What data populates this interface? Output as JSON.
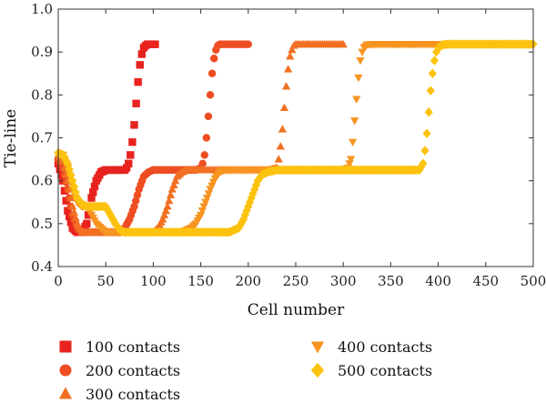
{
  "chart_data": {
    "type": "scatter",
    "title": "",
    "xlabel": "Cell number",
    "ylabel": "Tie-line",
    "xlim": [
      0,
      500
    ],
    "ylim": [
      0.4,
      1.0
    ],
    "xticks": [
      "0",
      "50",
      "100",
      "150",
      "200",
      "250",
      "300",
      "350",
      "400",
      "450",
      "500"
    ],
    "yticks": [
      "0.4",
      "0.5",
      "0.6",
      "0.7",
      "0.8",
      "0.9",
      "1.0"
    ],
    "grid": false,
    "legend_position": "bottom",
    "series": [
      {
        "name": "100 contacts",
        "marker": "square",
        "color": "#e8231e",
        "x": [
          0,
          5,
          10,
          15,
          20,
          25,
          30,
          35,
          40,
          45,
          50,
          55,
          60,
          65,
          70,
          72,
          74,
          76,
          78,
          80,
          82,
          84,
          86,
          88,
          90,
          92,
          94,
          96,
          98,
          100,
          102
        ],
        "y": [
          0.64,
          0.6,
          0.53,
          0.49,
          0.48,
          0.48,
          0.5,
          0.56,
          0.6,
          0.62,
          0.625,
          0.625,
          0.625,
          0.625,
          0.625,
          0.63,
          0.64,
          0.66,
          0.69,
          0.73,
          0.78,
          0.83,
          0.87,
          0.895,
          0.91,
          0.915,
          0.918,
          0.918,
          0.918,
          0.918,
          0.918
        ]
      },
      {
        "name": "200 contacts",
        "marker": "circle",
        "color": "#ee4d22",
        "x": [
          0,
          5,
          10,
          15,
          20,
          25,
          30,
          35,
          40,
          45,
          50,
          55,
          60,
          65,
          70,
          75,
          80,
          85,
          90,
          95,
          100,
          105,
          110,
          120,
          130,
          140,
          145,
          150,
          152,
          154,
          156,
          158,
          160,
          162,
          164,
          166,
          168,
          170,
          175,
          180,
          185,
          190,
          195,
          200
        ],
        "y": [
          0.65,
          0.63,
          0.58,
          0.52,
          0.49,
          0.48,
          0.48,
          0.48,
          0.48,
          0.48,
          0.48,
          0.48,
          0.48,
          0.48,
          0.49,
          0.51,
          0.54,
          0.58,
          0.61,
          0.62,
          0.625,
          0.625,
          0.625,
          0.625,
          0.625,
          0.625,
          0.625,
          0.63,
          0.64,
          0.66,
          0.7,
          0.75,
          0.8,
          0.85,
          0.885,
          0.905,
          0.915,
          0.918,
          0.918,
          0.918,
          0.918,
          0.918,
          0.918,
          0.918
        ]
      },
      {
        "name": "300 contacts",
        "marker": "triangle-up",
        "color": "#f27022",
        "x": [
          0,
          5,
          10,
          15,
          20,
          25,
          30,
          40,
          50,
          60,
          70,
          80,
          90,
          100,
          105,
          110,
          115,
          120,
          125,
          130,
          135,
          140,
          150,
          160,
          180,
          200,
          220,
          230,
          232,
          234,
          236,
          238,
          240,
          242,
          244,
          246,
          248,
          250,
          260,
          270,
          280,
          290,
          300
        ],
        "y": [
          0.66,
          0.645,
          0.6,
          0.54,
          0.5,
          0.48,
          0.48,
          0.48,
          0.48,
          0.48,
          0.48,
          0.48,
          0.48,
          0.48,
          0.49,
          0.51,
          0.54,
          0.58,
          0.61,
          0.62,
          0.625,
          0.625,
          0.625,
          0.625,
          0.625,
          0.625,
          0.625,
          0.63,
          0.65,
          0.68,
          0.72,
          0.77,
          0.82,
          0.86,
          0.89,
          0.905,
          0.915,
          0.918,
          0.918,
          0.918,
          0.918,
          0.918,
          0.918
        ]
      },
      {
        "name": "400 contacts",
        "marker": "triangle-down",
        "color": "#f79420",
        "x": [
          0,
          5,
          10,
          15,
          20,
          25,
          30,
          35,
          40,
          50,
          60,
          80,
          100,
          120,
          130,
          140,
          145,
          150,
          155,
          160,
          165,
          170,
          175,
          180,
          190,
          200,
          220,
          250,
          280,
          300,
          305,
          308,
          310,
          312,
          314,
          316,
          318,
          320,
          322,
          325,
          330,
          340,
          350,
          370,
          390,
          400
        ],
        "y": [
          0.66,
          0.66,
          0.63,
          0.58,
          0.55,
          0.54,
          0.54,
          0.52,
          0.5,
          0.48,
          0.48,
          0.48,
          0.48,
          0.48,
          0.48,
          0.49,
          0.5,
          0.52,
          0.55,
          0.58,
          0.605,
          0.62,
          0.625,
          0.625,
          0.625,
          0.625,
          0.625,
          0.625,
          0.625,
          0.625,
          0.63,
          0.65,
          0.69,
          0.74,
          0.79,
          0.84,
          0.88,
          0.9,
          0.91,
          0.917,
          0.918,
          0.918,
          0.918,
          0.918,
          0.918,
          0.918
        ]
      },
      {
        "name": "500 contacts",
        "marker": "diamond",
        "color": "#fcc20e",
        "x": [
          0,
          5,
          10,
          15,
          20,
          25,
          30,
          40,
          50,
          55,
          60,
          65,
          70,
          80,
          100,
          120,
          140,
          160,
          180,
          190,
          195,
          200,
          205,
          210,
          215,
          220,
          230,
          250,
          280,
          320,
          350,
          380,
          384,
          386,
          388,
          390,
          392,
          394,
          396,
          398,
          400,
          405,
          410,
          420,
          440,
          460,
          480,
          500
        ],
        "y": [
          0.665,
          0.66,
          0.64,
          0.6,
          0.56,
          0.545,
          0.54,
          0.54,
          0.54,
          0.52,
          0.5,
          0.485,
          0.48,
          0.48,
          0.48,
          0.48,
          0.48,
          0.48,
          0.48,
          0.49,
          0.51,
          0.54,
          0.57,
          0.6,
          0.615,
          0.62,
          0.625,
          0.625,
          0.625,
          0.625,
          0.625,
          0.625,
          0.64,
          0.67,
          0.71,
          0.76,
          0.81,
          0.85,
          0.88,
          0.9,
          0.91,
          0.917,
          0.918,
          0.918,
          0.918,
          0.918,
          0.918,
          0.918
        ]
      }
    ]
  }
}
